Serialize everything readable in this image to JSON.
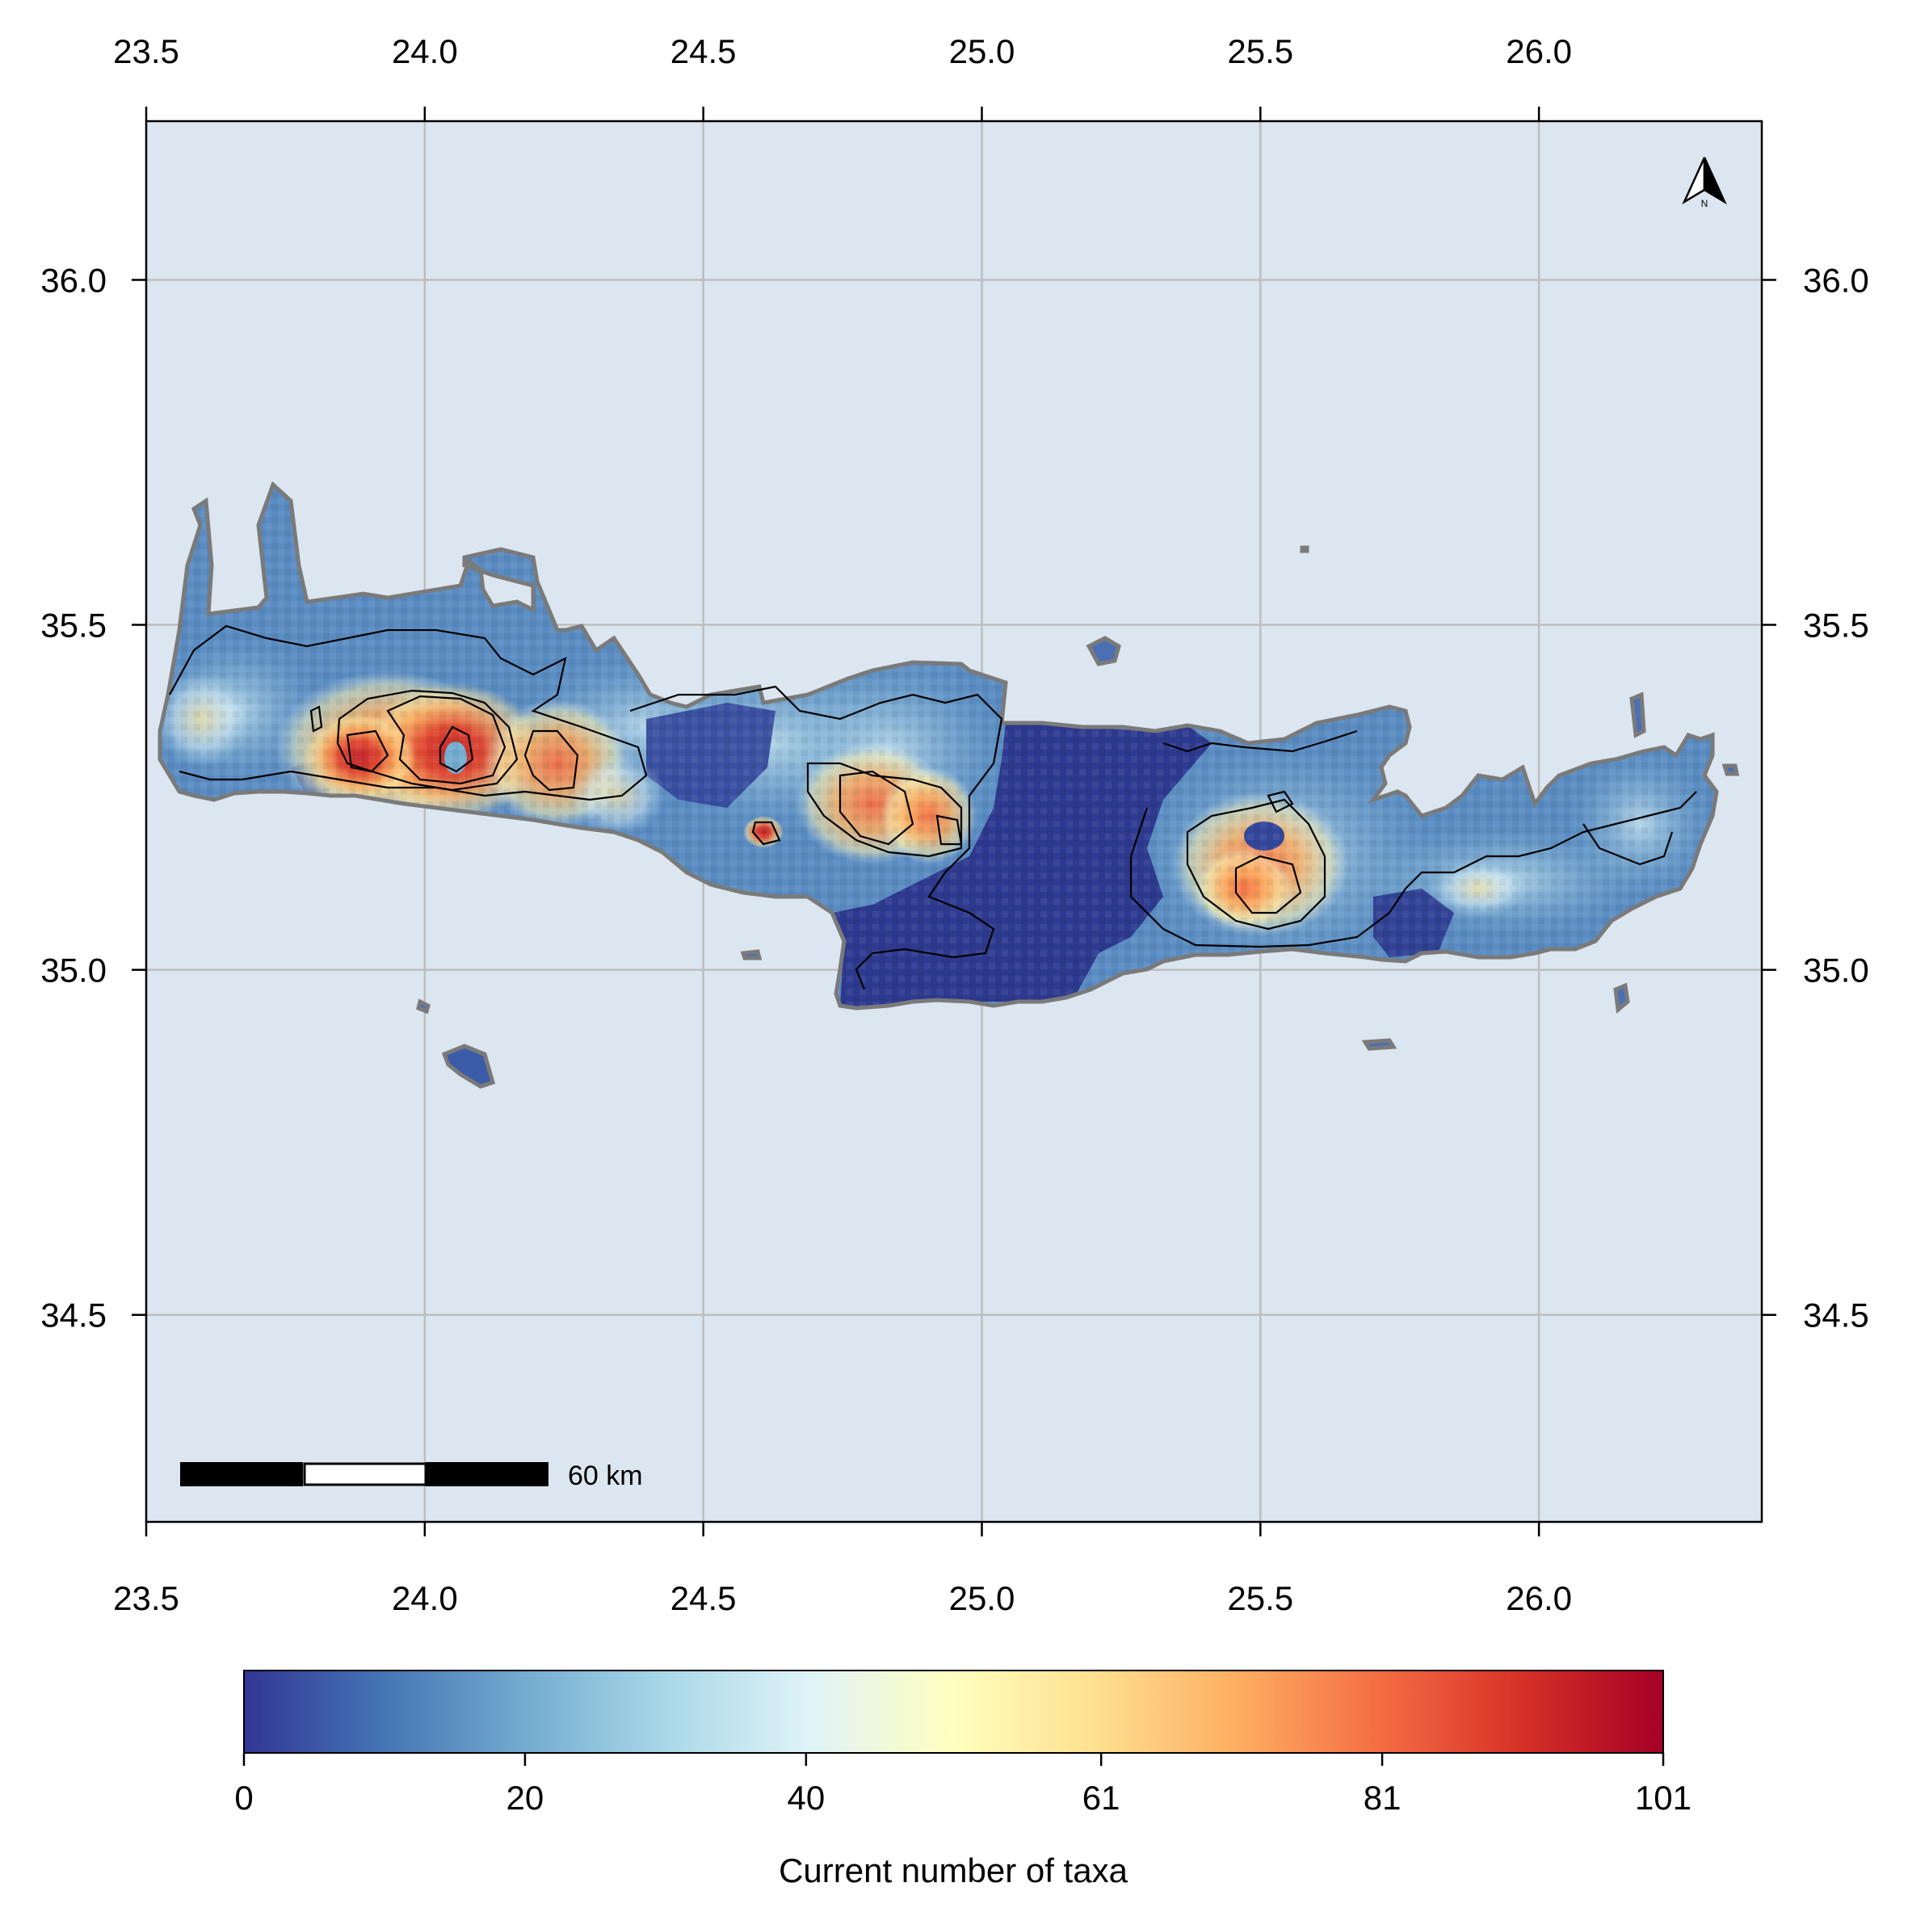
{
  "map": {
    "x_ticks": [
      "23.5",
      "24.0",
      "24.5",
      "25.0",
      "25.5",
      "26.0"
    ],
    "y_ticks": [
      "36.0",
      "35.5",
      "35.0",
      "34.5"
    ],
    "x_range": [
      23.5,
      26.4
    ],
    "y_range": [
      34.2,
      36.23
    ],
    "north_arrow_label": "N",
    "north_arrow_icon": "north-arrow-icon",
    "scale_bar_label": "60 km",
    "sea_color": "#dce6f0",
    "grid": true
  },
  "legend": {
    "title": "Current number of taxa",
    "ticks": [
      "0",
      "20",
      "40",
      "61",
      "81",
      "101"
    ],
    "range": [
      0,
      101
    ],
    "palette": [
      "#313695",
      "#4575b4",
      "#74add1",
      "#abd9e9",
      "#e0f3f8",
      "#ffffbf",
      "#fee090",
      "#fdae61",
      "#f46d43",
      "#d73027",
      "#a50026"
    ]
  },
  "chart_data": {
    "type": "heatmap",
    "xlabel": "",
    "ylabel": "",
    "colorbar_label": "Current number of taxa",
    "value_range": [
      0,
      101
    ],
    "grid": true,
    "hotspots": [
      {
        "lon": 24.07,
        "lat": 35.3,
        "value": 90
      },
      {
        "lon": 23.9,
        "lat": 35.3,
        "value": 78
      },
      {
        "lon": 24.25,
        "lat": 35.28,
        "value": 74
      },
      {
        "lon": 24.61,
        "lat": 35.18,
        "value": 85
      },
      {
        "lon": 24.8,
        "lat": 35.22,
        "value": 70
      },
      {
        "lon": 24.92,
        "lat": 35.19,
        "value": 66
      },
      {
        "lon": 25.5,
        "lat": 35.12,
        "value": 72
      },
      {
        "lon": 25.88,
        "lat": 35.1,
        "value": 52
      }
    ]
  }
}
